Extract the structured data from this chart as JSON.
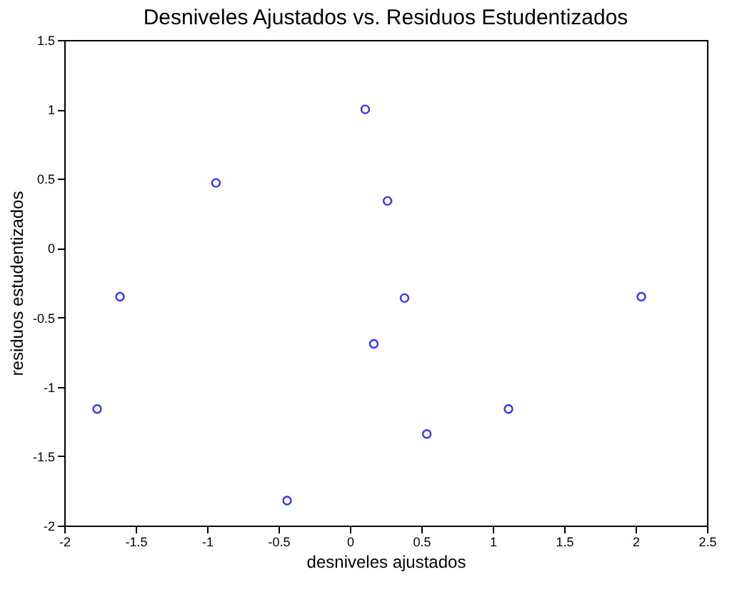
{
  "chart_data": {
    "type": "scatter",
    "title": "Desniveles Ajustados vs. Residuos Estudentizados",
    "xlabel": "desniveles ajustados",
    "ylabel": "residuos estudentizados",
    "x": [
      0.107,
      -0.938,
      -1.61,
      -1.77,
      -0.44,
      0.167,
      0.263,
      0.382,
      0.538,
      1.11,
      2.04
    ],
    "series": [
      {
        "color": "#3333ff",
        "values": [
          1.0,
          0.47,
          -0.35,
          -1.16,
          -1.82,
          -0.69,
          0.34,
          -0.36,
          -1.34,
          -1.16,
          -0.35
        ]
      }
    ],
    "xlim": [
      -2,
      2.5
    ],
    "ylim": [
      -2,
      1.5
    ],
    "xticks": [
      -2,
      -1.5,
      -1,
      -0.5,
      0,
      0.5,
      1,
      1.5,
      2,
      2.5
    ],
    "yticks": [
      -2,
      -1.5,
      -1,
      -0.5,
      0,
      0.5,
      1,
      1.5
    ],
    "marker": "circle",
    "grid": false,
    "legend": false
  }
}
